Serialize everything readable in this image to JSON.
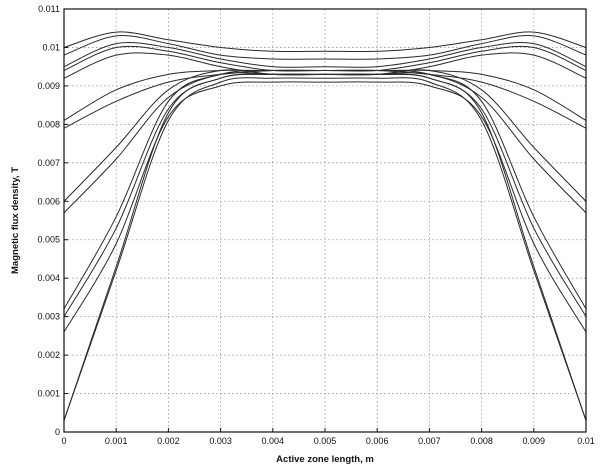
{
  "chart_data": {
    "type": "line",
    "xlabel": "Active zone length, m",
    "ylabel": "Magnetic flux density, T",
    "xlim": [
      0,
      0.01
    ],
    "ylim": [
      0,
      0.011
    ],
    "grid": true,
    "x_ticks": [
      "0",
      "0.001",
      "0.002",
      "0.003",
      "0.004",
      "0.005",
      "0.006",
      "0.007",
      "0.008",
      "0.009",
      "0.01"
    ],
    "y_ticks": [
      "0",
      "0.001",
      "0.002",
      "0.003",
      "0.004",
      "0.005",
      "0.006",
      "0.007",
      "0.008",
      "0.009",
      "0.01",
      "0.011"
    ],
    "series": [
      {
        "x": [
          0,
          0.001,
          0.002,
          0.003,
          0.004,
          0.005,
          0.006,
          0.007,
          0.008,
          0.009,
          0.01
        ],
        "y": [
          0.0003,
          0.0043,
          0.0083,
          0.0092,
          0.0093,
          0.0093,
          0.0093,
          0.0092,
          0.0083,
          0.0043,
          0.0003
        ]
      },
      {
        "x": [
          0,
          0.001,
          0.002,
          0.003,
          0.004,
          0.005,
          0.006,
          0.007,
          0.008,
          0.009,
          0.01
        ],
        "y": [
          0.0003,
          0.0042,
          0.0081,
          0.0091,
          0.0092,
          0.0092,
          0.0092,
          0.0091,
          0.0081,
          0.0042,
          0.0003
        ]
      },
      {
        "x": [
          0,
          0.001,
          0.002,
          0.003,
          0.004,
          0.005,
          0.006,
          0.007,
          0.008,
          0.009,
          0.01
        ],
        "y": [
          0.0026,
          0.0049,
          0.0082,
          0.009,
          0.0091,
          0.0091,
          0.0091,
          0.009,
          0.0082,
          0.0049,
          0.0026
        ]
      },
      {
        "x": [
          0,
          0.001,
          0.002,
          0.003,
          0.004,
          0.005,
          0.006,
          0.007,
          0.008,
          0.009,
          0.01
        ],
        "y": [
          0.003,
          0.0053,
          0.0084,
          0.0092,
          0.0093,
          0.0093,
          0.0093,
          0.0092,
          0.0084,
          0.0053,
          0.003
        ]
      },
      {
        "x": [
          0,
          0.001,
          0.002,
          0.003,
          0.004,
          0.005,
          0.006,
          0.007,
          0.008,
          0.009,
          0.01
        ],
        "y": [
          0.0032,
          0.0056,
          0.0086,
          0.0093,
          0.0094,
          0.0094,
          0.0094,
          0.0093,
          0.0086,
          0.0056,
          0.0032
        ]
      },
      {
        "x": [
          0,
          0.001,
          0.002,
          0.003,
          0.004,
          0.005,
          0.006,
          0.007,
          0.008,
          0.009,
          0.01
        ],
        "y": [
          0.0057,
          0.0071,
          0.0087,
          0.0093,
          0.0093,
          0.0093,
          0.0093,
          0.0093,
          0.0087,
          0.0071,
          0.0057
        ]
      },
      {
        "x": [
          0,
          0.001,
          0.002,
          0.003,
          0.004,
          0.005,
          0.006,
          0.007,
          0.008,
          0.009,
          0.01
        ],
        "y": [
          0.006,
          0.0074,
          0.0089,
          0.0094,
          0.0093,
          0.0093,
          0.0093,
          0.0094,
          0.0089,
          0.0074,
          0.006
        ]
      },
      {
        "x": [
          0,
          0.001,
          0.002,
          0.003,
          0.004,
          0.005,
          0.006,
          0.007,
          0.008,
          0.009,
          0.01
        ],
        "y": [
          0.0079,
          0.0086,
          0.0091,
          0.0093,
          0.0094,
          0.0094,
          0.0094,
          0.0093,
          0.0091,
          0.0086,
          0.0079
        ]
      },
      {
        "x": [
          0,
          0.001,
          0.002,
          0.003,
          0.004,
          0.005,
          0.006,
          0.007,
          0.008,
          0.009,
          0.01
        ],
        "y": [
          0.0081,
          0.0089,
          0.0093,
          0.0094,
          0.0094,
          0.0094,
          0.0094,
          0.0094,
          0.0093,
          0.0089,
          0.0081
        ]
      },
      {
        "x": [
          0,
          0.001,
          0.002,
          0.003,
          0.004,
          0.005,
          0.006,
          0.007,
          0.008,
          0.009,
          0.01
        ],
        "y": [
          0.0092,
          0.0098,
          0.0098,
          0.0095,
          0.0093,
          0.0093,
          0.0093,
          0.0095,
          0.0098,
          0.0098,
          0.0092
        ]
      },
      {
        "x": [
          0,
          0.001,
          0.002,
          0.003,
          0.004,
          0.005,
          0.006,
          0.007,
          0.008,
          0.009,
          0.01
        ],
        "y": [
          0.0094,
          0.01,
          0.0099,
          0.0096,
          0.0094,
          0.0094,
          0.0094,
          0.0096,
          0.0099,
          0.01,
          0.0094
        ]
      },
      {
        "x": [
          0,
          0.001,
          0.002,
          0.003,
          0.004,
          0.005,
          0.006,
          0.007,
          0.008,
          0.009,
          0.01
        ],
        "y": [
          0.0095,
          0.0101,
          0.01,
          0.0097,
          0.0095,
          0.0095,
          0.0095,
          0.0097,
          0.01,
          0.0101,
          0.0095
        ]
      },
      {
        "x": [
          0,
          0.001,
          0.002,
          0.003,
          0.004,
          0.005,
          0.006,
          0.007,
          0.008,
          0.009,
          0.01
        ],
        "y": [
          0.0098,
          0.0103,
          0.0101,
          0.0098,
          0.0097,
          0.0097,
          0.0097,
          0.0098,
          0.0101,
          0.0103,
          0.0098
        ]
      },
      {
        "x": [
          0,
          0.001,
          0.002,
          0.003,
          0.004,
          0.005,
          0.006,
          0.007,
          0.008,
          0.009,
          0.01
        ],
        "y": [
          0.01,
          0.0104,
          0.0102,
          0.01,
          0.0099,
          0.0099,
          0.0099,
          0.01,
          0.0102,
          0.0104,
          0.01
        ]
      }
    ]
  }
}
